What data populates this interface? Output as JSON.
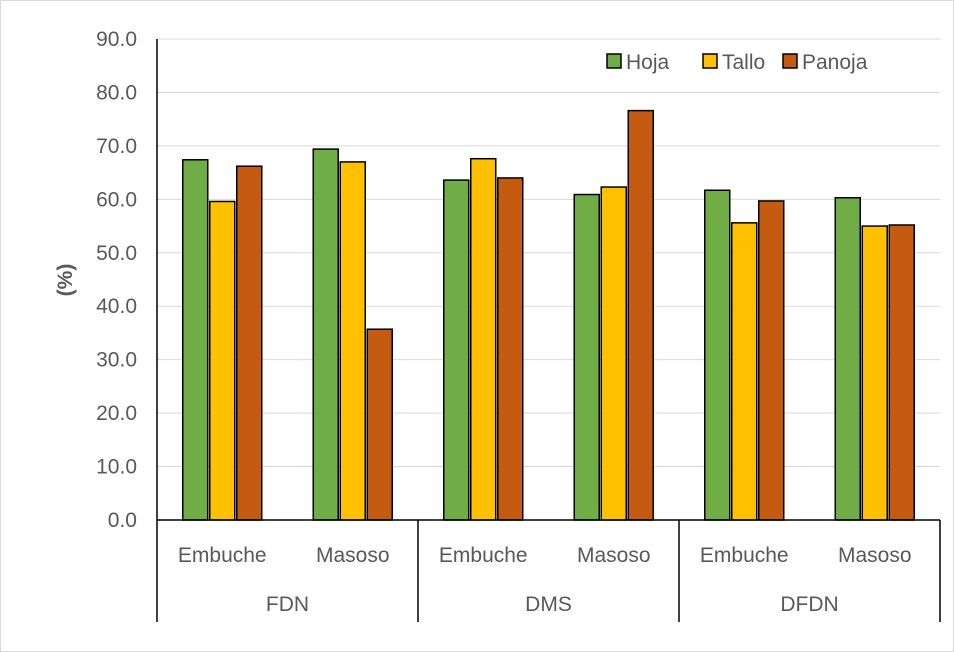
{
  "chart_data": {
    "type": "bar",
    "ylabel": "(%)",
    "ylim": [
      0,
      90
    ],
    "yticks": [
      "0.0",
      "10.0",
      "20.0",
      "30.0",
      "40.0",
      "50.0",
      "60.0",
      "70.0",
      "80.0",
      "90.0"
    ],
    "grid": true,
    "legend_position": "top-right",
    "groups": [
      {
        "label": "FDN",
        "categories": [
          "Embuche",
          "Masoso"
        ]
      },
      {
        "label": "DMS",
        "categories": [
          "Embuche",
          "Masoso"
        ]
      },
      {
        "label": "DFDN",
        "categories": [
          "Embuche",
          "Masoso"
        ]
      }
    ],
    "categories": [
      "Embuche",
      "Masoso",
      "Embuche",
      "Masoso",
      "Embuche",
      "Masoso"
    ],
    "series": [
      {
        "name": "Hoja",
        "color": "#70ad47",
        "values": [
          67.4,
          69.4,
          63.6,
          60.9,
          61.7,
          60.3
        ]
      },
      {
        "name": "Tallo",
        "color": "#ffc000",
        "values": [
          59.6,
          67.0,
          67.6,
          62.3,
          55.6,
          55.0
        ]
      },
      {
        "name": "Panoja",
        "color": "#c55a11",
        "values": [
          66.2,
          35.7,
          64.0,
          76.6,
          59.7,
          55.2
        ]
      }
    ]
  }
}
